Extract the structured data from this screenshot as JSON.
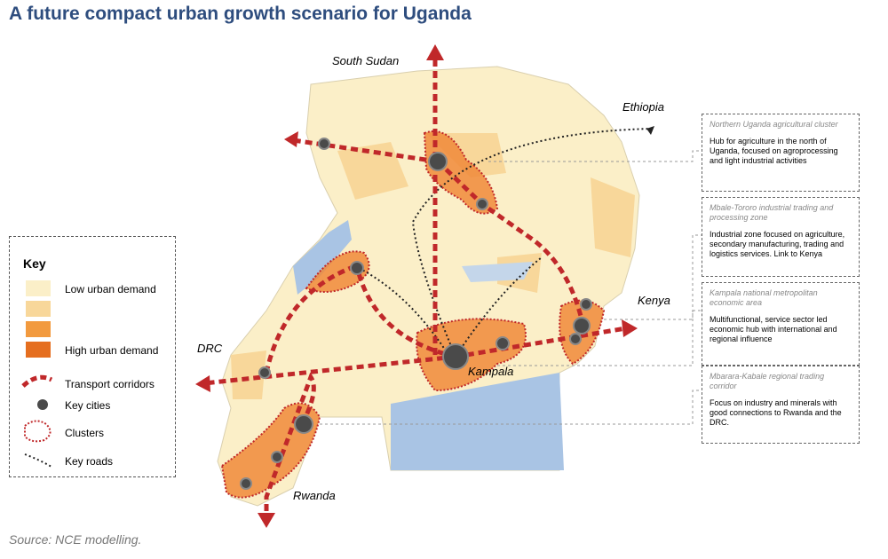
{
  "header": {
    "title": "A future compact urban growth scenario for Uganda"
  },
  "key": {
    "title": "Key",
    "items": [
      "Low urban demand",
      "High urban demand",
      "Transport corridors",
      "Key cities",
      "Clusters",
      "Key roads"
    ]
  },
  "map_labels": [
    "South Sudan",
    "Ethiopia",
    "Kenya",
    "DRC",
    "Rwanda",
    "Kampala"
  ],
  "callouts": [
    {
      "heading": "Northern Uganda agricultural cluster",
      "body": "Hub for agriculture in the north of Uganda, focused on agroprocessing and light industrial activities"
    },
    {
      "heading": "Mbale-Tororo industrial trading and processing zone",
      "body": "Industrial zone focused on agriculture, secondary manufacturing, trading and logistics services. Link to Kenya"
    },
    {
      "heading": "Kampala national metropolitan economic area",
      "body": "Multifunctional, service sector led economic hub with international and regional influence"
    },
    {
      "heading": "Mbarara-Kabale regional trading corridor",
      "body": "Focus on industry and minerals with good connections to Rwanda and the DRC."
    }
  ],
  "footer": {
    "source": "Source: NCE modelling."
  }
}
